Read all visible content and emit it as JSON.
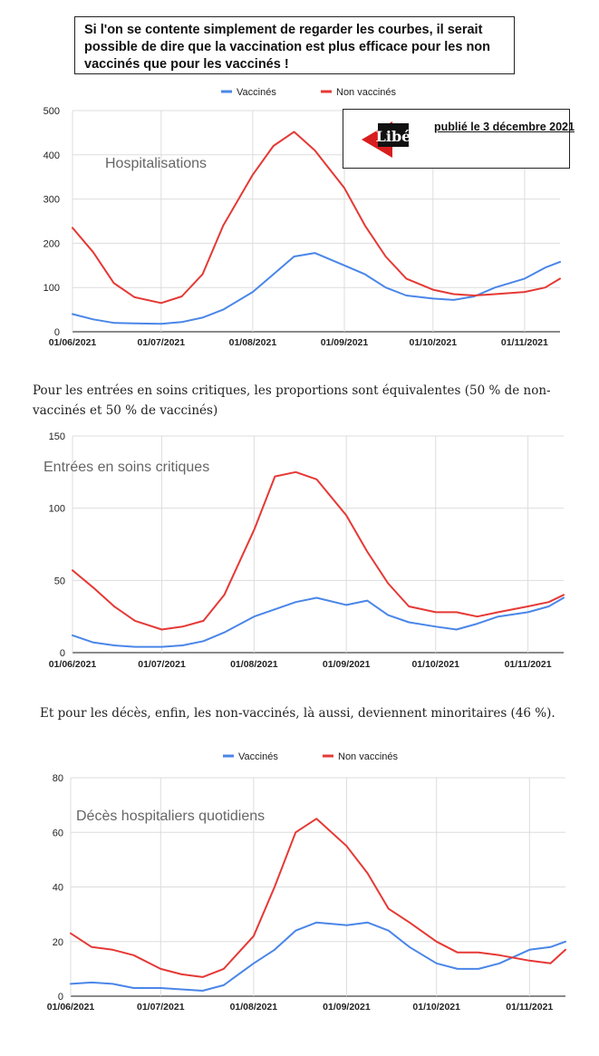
{
  "header_note": {
    "text": "Si l'on se contente simplement de regarder les courbes, il serait possible de dire que la vaccination est plus efficace pour les non vaccinés que pour les vaccinés !"
  },
  "source_badge": {
    "logo_text": "Libé",
    "date_text": "publié le 3 décembre 2021"
  },
  "captions": {
    "critical": "Pour les entrées en soins critiques, les proportions sont équivalentes (50 % de non-vaccinés et 50 % de vaccinés)",
    "deaths": "Et pour les décès, enfin, les non-vaccinés, là aussi, deviennent minoritaires (46 %)."
  },
  "colors": {
    "vaccinated": "#4a86e8",
    "unvaccinated": "#e53935",
    "grid": "#dddddd",
    "text": "#222222",
    "title": "#666666"
  },
  "chart_data": [
    {
      "id": "hosp",
      "type": "line",
      "title": "Hospitalisations",
      "legend": [
        "Vaccinés",
        "Non vaccinés"
      ],
      "legend_position": "top",
      "x_ticks": [
        "01/06/2021",
        "01/07/2021",
        "01/08/2021",
        "01/09/2021",
        "01/10/2021",
        "01/11/2021"
      ],
      "x_range": [
        "2021-06-01",
        "2021-11-13"
      ],
      "ylim": [
        0,
        500
      ],
      "y_ticks": [
        0,
        100,
        200,
        300,
        400,
        500
      ],
      "grid": true,
      "series": [
        {
          "name": "Vaccinés",
          "color": "#4a86e8",
          "x": [
            "2021-06-01",
            "2021-06-08",
            "2021-06-15",
            "2021-06-22",
            "2021-07-01",
            "2021-07-08",
            "2021-07-15",
            "2021-07-22",
            "2021-08-01",
            "2021-08-08",
            "2021-08-15",
            "2021-08-22",
            "2021-09-01",
            "2021-09-08",
            "2021-09-15",
            "2021-09-22",
            "2021-10-01",
            "2021-10-08",
            "2021-10-15",
            "2021-10-22",
            "2021-11-01",
            "2021-11-08",
            "2021-11-13"
          ],
          "y": [
            40,
            28,
            20,
            19,
            18,
            22,
            32,
            50,
            90,
            130,
            170,
            178,
            150,
            130,
            100,
            82,
            75,
            72,
            80,
            100,
            120,
            145,
            158
          ]
        },
        {
          "name": "Non vaccinés",
          "color": "#e53935",
          "x": [
            "2021-06-01",
            "2021-06-08",
            "2021-06-15",
            "2021-06-22",
            "2021-07-01",
            "2021-07-08",
            "2021-07-15",
            "2021-07-22",
            "2021-08-01",
            "2021-08-08",
            "2021-08-15",
            "2021-08-22",
            "2021-09-01",
            "2021-09-08",
            "2021-09-15",
            "2021-09-22",
            "2021-10-01",
            "2021-10-08",
            "2021-10-15",
            "2021-10-22",
            "2021-11-01",
            "2021-11-08",
            "2021-11-13"
          ],
          "y": [
            235,
            180,
            110,
            78,
            65,
            80,
            130,
            240,
            355,
            420,
            452,
            410,
            325,
            240,
            170,
            120,
            95,
            85,
            82,
            85,
            90,
            100,
            120
          ]
        }
      ]
    },
    {
      "id": "critical",
      "type": "line",
      "title": "Entrées en soins critiques",
      "legend": [],
      "x_ticks": [
        "01/06/2021",
        "01/07/2021",
        "01/08/2021",
        "01/09/2021",
        "01/10/2021",
        "01/11/2021"
      ],
      "x_range": [
        "2021-06-01",
        "2021-11-13"
      ],
      "ylim": [
        0,
        150
      ],
      "y_ticks": [
        0,
        50,
        100,
        150
      ],
      "grid": true,
      "series": [
        {
          "name": "Vaccinés",
          "color": "#4a86e8",
          "x": [
            "2021-06-01",
            "2021-06-08",
            "2021-06-15",
            "2021-06-22",
            "2021-07-01",
            "2021-07-08",
            "2021-07-15",
            "2021-07-22",
            "2021-08-01",
            "2021-08-08",
            "2021-08-15",
            "2021-08-22",
            "2021-09-01",
            "2021-09-08",
            "2021-09-15",
            "2021-09-22",
            "2021-10-01",
            "2021-10-08",
            "2021-10-15",
            "2021-10-22",
            "2021-11-01",
            "2021-11-08",
            "2021-11-13"
          ],
          "y": [
            12,
            7,
            5,
            4,
            4,
            5,
            8,
            14,
            25,
            30,
            35,
            38,
            33,
            36,
            26,
            21,
            18,
            16,
            20,
            25,
            28,
            32,
            38
          ]
        },
        {
          "name": "Non vaccinés",
          "color": "#e53935",
          "x": [
            "2021-06-01",
            "2021-06-08",
            "2021-06-15",
            "2021-06-22",
            "2021-07-01",
            "2021-07-08",
            "2021-07-15",
            "2021-07-22",
            "2021-08-01",
            "2021-08-08",
            "2021-08-15",
            "2021-08-22",
            "2021-09-01",
            "2021-09-08",
            "2021-09-15",
            "2021-09-22",
            "2021-10-01",
            "2021-10-08",
            "2021-10-15",
            "2021-10-22",
            "2021-11-01",
            "2021-11-08",
            "2021-11-13"
          ],
          "y": [
            57,
            45,
            32,
            22,
            16,
            18,
            22,
            40,
            85,
            122,
            125,
            120,
            95,
            70,
            48,
            32,
            28,
            28,
            25,
            28,
            32,
            35,
            40
          ]
        }
      ]
    },
    {
      "id": "deaths",
      "type": "line",
      "title": "Décès hospitaliers quotidiens",
      "legend": [
        "Vaccinés",
        "Non vaccinés"
      ],
      "legend_position": "top",
      "x_ticks": [
        "01/06/2021",
        "01/07/2021",
        "01/08/2021",
        "01/09/2021",
        "01/10/2021",
        "01/11/2021"
      ],
      "x_range": [
        "2021-06-01",
        "2021-11-13"
      ],
      "ylim": [
        0,
        80
      ],
      "y_ticks": [
        0,
        20,
        40,
        60,
        80
      ],
      "grid": true,
      "series": [
        {
          "name": "Vaccinés",
          "color": "#4a86e8",
          "x": [
            "2021-06-01",
            "2021-06-08",
            "2021-06-15",
            "2021-06-22",
            "2021-07-01",
            "2021-07-08",
            "2021-07-15",
            "2021-07-22",
            "2021-08-01",
            "2021-08-08",
            "2021-08-15",
            "2021-08-22",
            "2021-09-01",
            "2021-09-08",
            "2021-09-15",
            "2021-09-22",
            "2021-10-01",
            "2021-10-08",
            "2021-10-15",
            "2021-10-22",
            "2021-11-01",
            "2021-11-08",
            "2021-11-13"
          ],
          "y": [
            4.5,
            5,
            4.5,
            3,
            3,
            2.5,
            2,
            4,
            12,
            17,
            24,
            27,
            26,
            27,
            24,
            18,
            12,
            10,
            10,
            12,
            17,
            18,
            20
          ]
        },
        {
          "name": "Non vaccinés",
          "color": "#e53935",
          "x": [
            "2021-06-01",
            "2021-06-08",
            "2021-06-15",
            "2021-06-22",
            "2021-07-01",
            "2021-07-08",
            "2021-07-15",
            "2021-07-22",
            "2021-08-01",
            "2021-08-08",
            "2021-08-15",
            "2021-08-22",
            "2021-09-01",
            "2021-09-08",
            "2021-09-15",
            "2021-09-22",
            "2021-10-01",
            "2021-10-08",
            "2021-10-15",
            "2021-10-22",
            "2021-11-01",
            "2021-11-08",
            "2021-11-13"
          ],
          "y": [
            23,
            18,
            17,
            15,
            10,
            8,
            7,
            10,
            22,
            40,
            60,
            65,
            55,
            45,
            32,
            27,
            20,
            16,
            16,
            15,
            13,
            12,
            17
          ]
        }
      ]
    }
  ]
}
